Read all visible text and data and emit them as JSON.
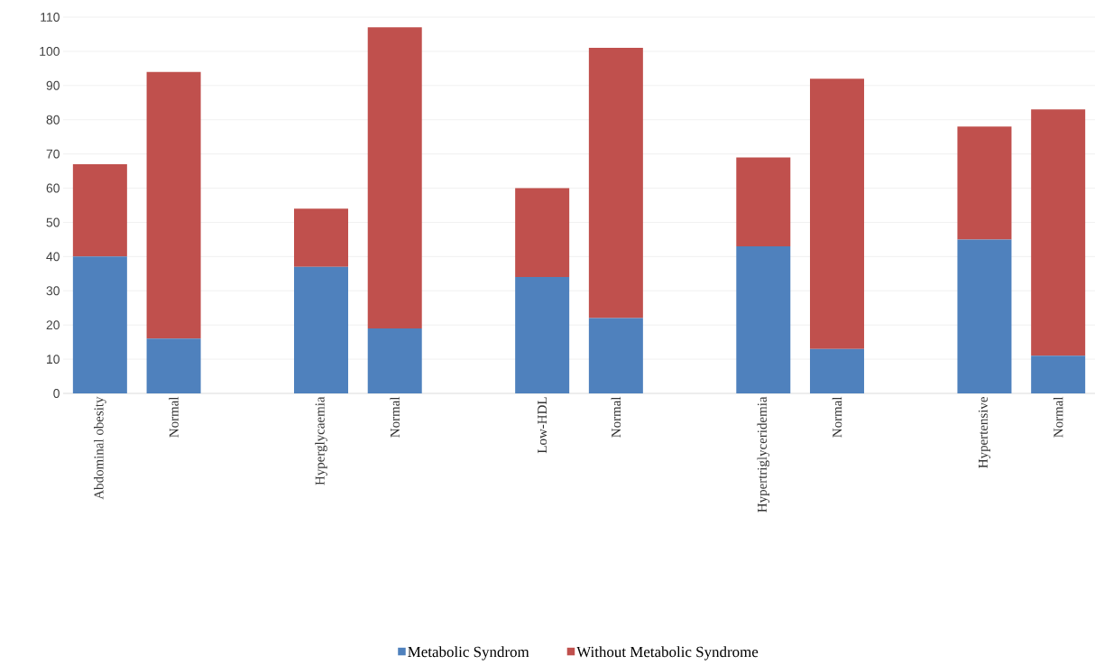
{
  "chart_data": {
    "type": "bar",
    "stacked": true,
    "categories": [
      "Abdominal obesity",
      "Normal",
      null,
      "Hyperglycaemia",
      "Normal",
      null,
      "Low-HDL",
      "Normal",
      null,
      "Hypertriglyceridemia",
      "Normal",
      null,
      "Hypertensive",
      "Normal"
    ],
    "series": [
      {
        "name": "Metabolic Syndrom",
        "color": "#4f81bd",
        "values": [
          40,
          16,
          null,
          37,
          19,
          null,
          34,
          22,
          null,
          43,
          13,
          null,
          45,
          11
        ]
      },
      {
        "name": "Without Metabolic Syndrome",
        "color": "#c0504d",
        "values": [
          27,
          78,
          null,
          17,
          88,
          null,
          26,
          79,
          null,
          26,
          79,
          null,
          33,
          72
        ]
      }
    ],
    "ylim": [
      0,
      110
    ],
    "yticks": [
      0,
      10,
      20,
      30,
      40,
      50,
      60,
      70,
      80,
      90,
      100,
      110
    ],
    "grid": "y",
    "legend": "bottom"
  }
}
